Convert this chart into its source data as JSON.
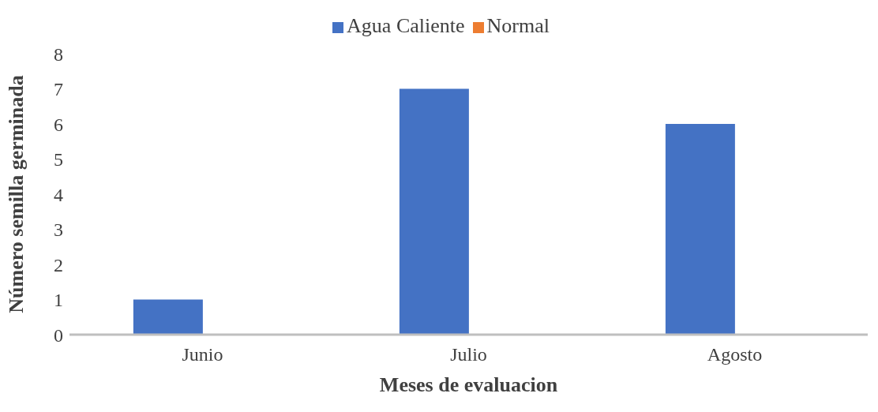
{
  "chart_data": {
    "type": "bar",
    "xlabel": "Meses de evaluacion",
    "ylabel": "Número semilla germinada",
    "categories": [
      "Junio",
      "Julio",
      "Agosto"
    ],
    "series": [
      {
        "name": "Agua Caliente",
        "color": "#4472c4",
        "values": [
          1,
          7,
          6
        ]
      },
      {
        "name": "Normal",
        "color": "#ed7d31",
        "values": [
          0,
          0,
          0
        ]
      }
    ],
    "ylim": [
      0,
      8
    ],
    "yticks": [
      0,
      1,
      2,
      3,
      4,
      5,
      6,
      7,
      8
    ],
    "grid": false,
    "legend": "top"
  }
}
